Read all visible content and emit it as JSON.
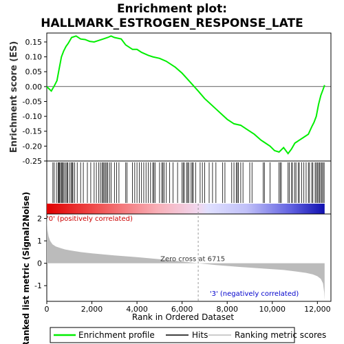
{
  "title_line1": "Enrichment plot:",
  "title_line2": "HALLMARK_ESTROGEN_RESPONSE_LATE",
  "colors": {
    "es_line": "#00ee00",
    "hit": "#000000",
    "metric_fill": "#bbbbbb",
    "pos_label": "#cc0000",
    "neg_label": "#0000cc"
  },
  "chart_data": [
    {
      "type": "line",
      "name": "enrichment-profile",
      "ylabel": "Enrichment score (ES)",
      "ylim": [
        -0.25,
        0.18
      ],
      "xlim": [
        0,
        12600
      ],
      "yticks": [
        "0.15",
        "0.10",
        "0.05",
        "0.00",
        "-0.05",
        "-0.10",
        "-0.15",
        "-0.20",
        "-0.25"
      ],
      "ytick_values": [
        0.15,
        0.1,
        0.05,
        0.0,
        -0.05,
        -0.1,
        -0.15,
        -0.2,
        -0.25
      ],
      "x": [
        0,
        200,
        350,
        450,
        550,
        650,
        750,
        850,
        950,
        1100,
        1300,
        1500,
        1700,
        1900,
        2100,
        2300,
        2500,
        2700,
        2850,
        3000,
        3300,
        3500,
        3800,
        4000,
        4200,
        4500,
        4700,
        5000,
        5300,
        5700,
        6000,
        6300,
        6715,
        7000,
        7500,
        8000,
        8300,
        8600,
        8900,
        9200,
        9500,
        9700,
        9900,
        10100,
        10300,
        10500,
        10700,
        10850,
        11000,
        11200,
        11400,
        11600,
        11750,
        11850,
        11950,
        12050,
        12150,
        12250,
        12320
      ],
      "y": [
        0.0,
        -0.015,
        0.005,
        0.02,
        0.06,
        0.1,
        0.12,
        0.135,
        0.145,
        0.165,
        0.17,
        0.16,
        0.158,
        0.152,
        0.15,
        0.155,
        0.16,
        0.165,
        0.17,
        0.165,
        0.16,
        0.14,
        0.125,
        0.125,
        0.115,
        0.105,
        0.1,
        0.095,
        0.085,
        0.065,
        0.045,
        0.02,
        -0.015,
        -0.04,
        -0.075,
        -0.11,
        -0.125,
        -0.13,
        -0.145,
        -0.16,
        -0.18,
        -0.19,
        -0.2,
        -0.215,
        -0.22,
        -0.205,
        -0.225,
        -0.21,
        -0.19,
        -0.18,
        -0.17,
        -0.16,
        -0.135,
        -0.12,
        -0.1,
        -0.06,
        -0.03,
        -0.01,
        0.005
      ]
    },
    {
      "type": "scatter",
      "name": "hits",
      "hit_positions": [
        270,
        330,
        430,
        500,
        540,
        570,
        610,
        660,
        700,
        730,
        790,
        850,
        900,
        940,
        1020,
        1080,
        1130,
        1160,
        1240,
        1350,
        1500,
        1620,
        1800,
        1950,
        2100,
        2200,
        2300,
        2380,
        2450,
        2500,
        2540,
        2600,
        2650,
        2700,
        2780,
        2850,
        3000,
        3100,
        3200,
        3500,
        3560,
        3800,
        3900,
        4000,
        4100,
        4200,
        4300,
        4400,
        4500,
        4600,
        4700,
        4750,
        4800,
        5000,
        5100,
        5150,
        5200,
        5300,
        5450,
        5600,
        5800,
        6000,
        6050,
        6100,
        6200,
        6250,
        6300,
        6400,
        6450,
        6500,
        6600,
        6800,
        6900,
        7000,
        7200,
        7350,
        7500,
        7800,
        7900,
        8200,
        8300,
        8400,
        8450,
        8500,
        8600,
        8700,
        9000,
        9100,
        9600,
        9650,
        9900,
        10300,
        10350,
        10400,
        10700,
        10750,
        10850,
        10900,
        11000,
        11050,
        11150,
        11200,
        11300,
        11400,
        11500,
        11600,
        11650,
        11750,
        11800,
        11900,
        11950,
        12000,
        12050,
        12100,
        12150,
        12200,
        12250,
        12300
      ]
    },
    {
      "type": "area",
      "name": "ranked-list-metric",
      "ylabel": "Ranked list metric (Signal2Noise)",
      "xlabel": "Rank in Ordered Dataset",
      "ylim": [
        -1.7,
        2.2
      ],
      "xlim": [
        0,
        12600
      ],
      "yticks": [
        "2",
        "1",
        "0",
        "-1"
      ],
      "ytick_values": [
        2,
        1,
        0,
        -1
      ],
      "xticks": [
        "0",
        "2,000",
        "4,000",
        "6,000",
        "8,000",
        "10,000",
        "12,000"
      ],
      "xtick_values": [
        0,
        2000,
        4000,
        6000,
        8000,
        10000,
        12000
      ],
      "x": [
        0,
        30,
        80,
        150,
        250,
        400,
        600,
        800,
        1000,
        1500,
        2000,
        3000,
        4000,
        5000,
        6000,
        6715,
        7500,
        8500,
        9500,
        10500,
        11000,
        11500,
        11800,
        12000,
        12150,
        12250,
        12300,
        12320
      ],
      "y": [
        2.1,
        1.5,
        1.2,
        1.0,
        0.85,
        0.75,
        0.68,
        0.62,
        0.58,
        0.5,
        0.44,
        0.35,
        0.27,
        0.18,
        0.08,
        0.0,
        -0.08,
        -0.16,
        -0.23,
        -0.3,
        -0.36,
        -0.43,
        -0.5,
        -0.58,
        -0.7,
        -0.9,
        -1.3,
        -1.65
      ],
      "zero_cross_label": "Zero cross at 6715",
      "zero_cross_rank": 6715,
      "pos_label": "'0' (positively correlated)",
      "neg_label": "'3' (negatively correlated)"
    }
  ],
  "legend": {
    "items": [
      "Enrichment profile",
      "Hits",
      "Ranking metric scores"
    ]
  }
}
